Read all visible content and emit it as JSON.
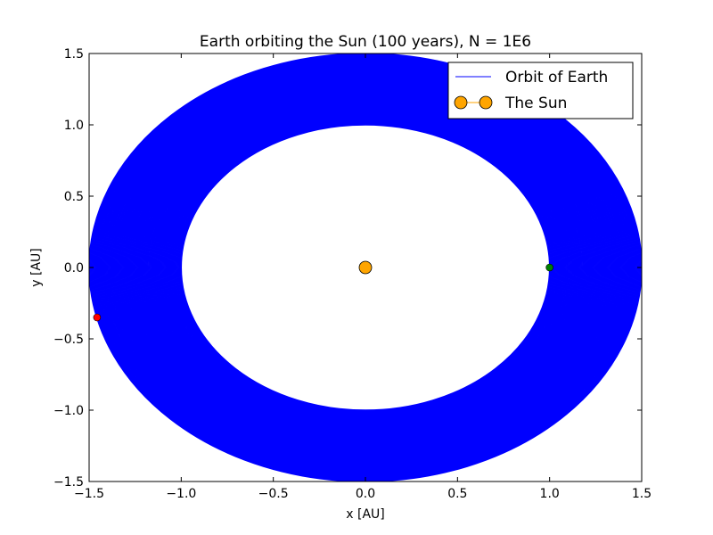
{
  "chart_data": {
    "type": "line",
    "title": "Earth orbiting the Sun (100 years), N = 1E6",
    "xlabel": "x [AU]",
    "ylabel": "y [AU]",
    "xlim": [
      -1.5,
      1.5
    ],
    "ylim": [
      -1.5,
      1.5
    ],
    "x_ticks": [
      -1.5,
      -1.0,
      -0.5,
      0.0,
      0.5,
      1.0,
      1.5
    ],
    "y_ticks": [
      -1.5,
      -1.0,
      -0.5,
      0.0,
      0.5,
      1.0,
      1.5
    ],
    "x_tick_labels": [
      "−1.5",
      "−1.0",
      "−0.5",
      "0.0",
      "0.5",
      "1.0",
      "1.5"
    ],
    "y_tick_labels": [
      "−1.5",
      "−1.0",
      "−0.5",
      "0.0",
      "0.5",
      "1.0",
      "1.5"
    ],
    "grid": false,
    "legend_position": "top-right",
    "series": [
      {
        "name": "Orbit of Earth",
        "kind": "spiral",
        "color": "#0000ff",
        "radius_start": 1.0,
        "radius_end": 1.5,
        "turns": 100
      },
      {
        "name": "The Sun",
        "kind": "point",
        "color": "#ffa500",
        "x": 0.0,
        "y": 0.0
      }
    ],
    "markers": [
      {
        "label": "start",
        "color": "#008000",
        "x": 1.0,
        "y": 0.0
      },
      {
        "label": "end",
        "color": "#ff0000",
        "x": -1.457,
        "y": -0.35
      }
    ]
  }
}
